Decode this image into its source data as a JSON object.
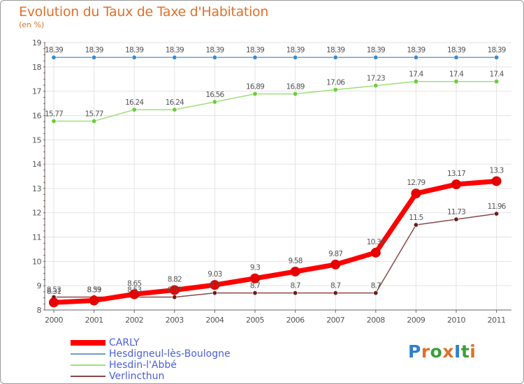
{
  "title": "Evolution du Taux de Taxe d'Habitation",
  "unit": "(en %)",
  "colors": {
    "title": "#e0702a",
    "legend_text": "#4a5fd8",
    "grid": "#e3e3e3",
    "axis": "#666666"
  },
  "logo": {
    "text": "ProxIti",
    "letters": [
      {
        "ch": "P",
        "color": "#2f7fcf"
      },
      {
        "ch": "r",
        "color": "#e0702a"
      },
      {
        "ch": "o",
        "color": "#3c9e3c"
      },
      {
        "ch": "x",
        "color": "#e0702a"
      },
      {
        "ch": "I",
        "color": "#2f7fcf"
      },
      {
        "ch": "t",
        "color": "#3c9e3c"
      },
      {
        "ch": "i",
        "color": "#e0702a"
      }
    ]
  },
  "chart_data": {
    "type": "line",
    "title": "Evolution du Taux de Taxe d'Habitation",
    "ylabel": "(en %)",
    "xlabel": "",
    "x": [
      "2000",
      "2001",
      "2002",
      "2003",
      "2004",
      "2005",
      "2006",
      "2007",
      "2008",
      "2009",
      "2010",
      "2011"
    ],
    "ylim": [
      8,
      19
    ],
    "yticks": [
      8,
      9,
      10,
      11,
      12,
      13,
      14,
      15,
      16,
      17,
      18,
      19
    ],
    "grid": true,
    "legend_position": "bottom-left",
    "series": [
      {
        "name": "CARLY",
        "color": "#ff0000",
        "marker_color": "#e80000",
        "width": 7,
        "marker_r": 6.5,
        "values": [
          8.31,
          8.39,
          8.65,
          8.82,
          9.03,
          9.3,
          9.58,
          9.87,
          10.36,
          12.79,
          13.17,
          13.3
        ],
        "labels": [
          "8.31",
          "8.39",
          "8.65",
          "8.82",
          "9.03",
          "9.3",
          "9.58",
          "9.87",
          "10.36",
          "12.79",
          "13.17",
          "13.3"
        ]
      },
      {
        "name": "Hesdigneul-lès-Boulogne",
        "color": "#6f9ec9",
        "marker_color": "#3a8ad0",
        "width": 1.5,
        "marker_r": 3.2,
        "values": [
          18.39,
          18.39,
          18.39,
          18.39,
          18.39,
          18.39,
          18.39,
          18.39,
          18.39,
          18.39,
          18.39,
          18.39
        ],
        "labels": [
          "18.39",
          "18.39",
          "18.39",
          "18.39",
          "18.39",
          "18.39",
          "18.39",
          "18.39",
          "18.39",
          "18.39",
          "18.39",
          "18.39"
        ]
      },
      {
        "name": "Hesdin-l'Abbé",
        "color": "#9fdf7a",
        "marker_color": "#6ccc3c",
        "width": 1.5,
        "marker_r": 3.2,
        "values": [
          15.77,
          15.77,
          16.24,
          16.24,
          16.56,
          16.89,
          16.89,
          17.06,
          17.23,
          17.4,
          17.4,
          17.4
        ],
        "labels": [
          "15.77",
          "15.77",
          "16.24",
          "16.24",
          "16.56",
          "16.89",
          "16.89",
          "17.06",
          "17.23",
          "17.4",
          "17.4",
          "17.4"
        ]
      },
      {
        "name": "Verlincthun",
        "color": "#8a4848",
        "marker_color": "#6a1e1e",
        "width": 1.5,
        "marker_r": 3.2,
        "values": [
          8.53,
          8.53,
          8.53,
          8.53,
          8.7,
          8.7,
          8.7,
          8.7,
          8.7,
          11.5,
          11.73,
          11.96
        ],
        "labels": [
          "8.53",
          "8.53",
          "8.53",
          "8.53",
          "8.7",
          "8.7",
          "8.7",
          "8.7",
          "8.7",
          "11.5",
          "11.73",
          "11.96"
        ]
      }
    ]
  }
}
